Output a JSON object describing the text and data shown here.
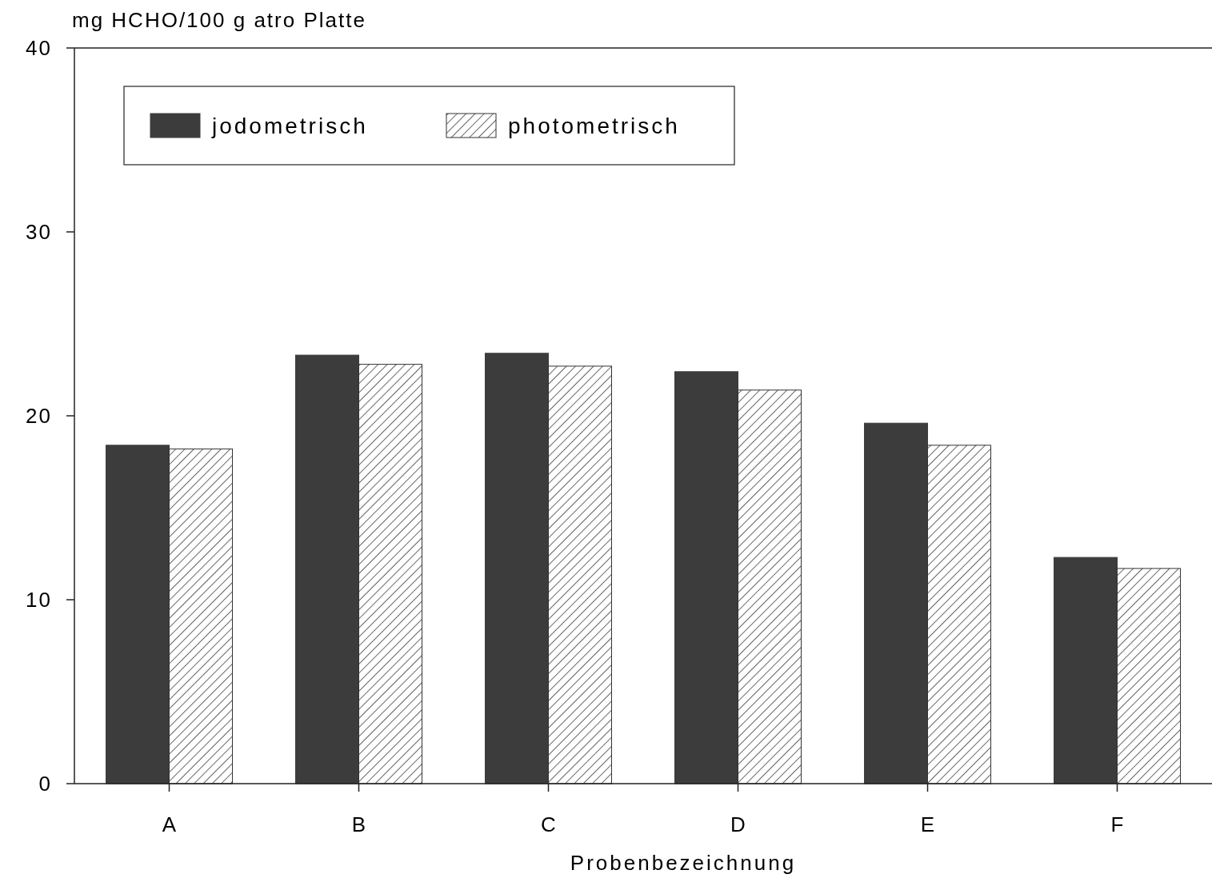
{
  "chart_data": {
    "type": "bar",
    "ylabel": "mg HCHO/100 g atro Platte",
    "xlabel": "Probenbezeichnung",
    "categories": [
      "A",
      "B",
      "C",
      "D",
      "E",
      "F"
    ],
    "series": [
      {
        "name": "jodometrisch",
        "color": "#3c3c3c",
        "values": [
          18.4,
          23.3,
          23.4,
          22.4,
          19.6,
          12.3
        ]
      },
      {
        "name": "photometrisch",
        "color": "#333333",
        "values": [
          18.2,
          22.8,
          22.7,
          21.4,
          18.4,
          11.7
        ]
      }
    ],
    "ylim": [
      0,
      40
    ],
    "yticks": [
      0,
      10,
      20,
      30,
      40
    ],
    "grid": false,
    "legend": "top left"
  }
}
